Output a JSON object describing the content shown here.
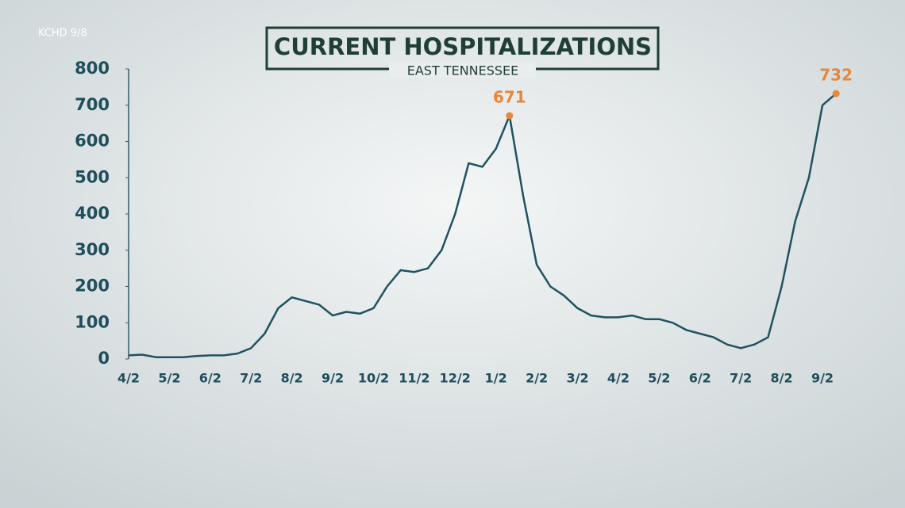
{
  "source": "KCHD 9/8",
  "chart_data": {
    "type": "line",
    "title": "CURRENT HOSPITALIZATIONS",
    "subtitle": "EAST TENNESSEE",
    "categories": [
      "4/2",
      null,
      null,
      "5/2",
      null,
      null,
      "6/2",
      null,
      null,
      "7/2",
      null,
      null,
      "8/2",
      null,
      null,
      "9/2",
      null,
      null,
      "10/2",
      null,
      null,
      "11/2",
      null,
      null,
      "12/2",
      null,
      null,
      "1/2",
      null,
      null,
      "2/2",
      null,
      null,
      "3/2",
      null,
      null,
      "4/2",
      null,
      null,
      "5/2",
      null,
      null,
      "6/2",
      null,
      null,
      "7/2",
      null,
      null,
      "8/2",
      null,
      null,
      "9/2",
      null
    ],
    "values": [
      10,
      12,
      5,
      5,
      5,
      8,
      10,
      10,
      15,
      30,
      70,
      140,
      170,
      160,
      150,
      120,
      130,
      125,
      140,
      200,
      245,
      240,
      250,
      300,
      400,
      540,
      530,
      580,
      671,
      450,
      260,
      200,
      175,
      140,
      120,
      115,
      115,
      120,
      110,
      110,
      100,
      80,
      70,
      60,
      40,
      30,
      40,
      60,
      200,
      380,
      500,
      700,
      732
    ],
    "color": "#1f5260",
    "highlight": [
      28,
      52
    ],
    "highlight_color": "#e8863a",
    "ylim": [
      0,
      800
    ],
    "yticks": [
      0,
      100,
      200,
      300,
      400,
      500,
      600,
      700,
      800
    ],
    "grid": false
  }
}
